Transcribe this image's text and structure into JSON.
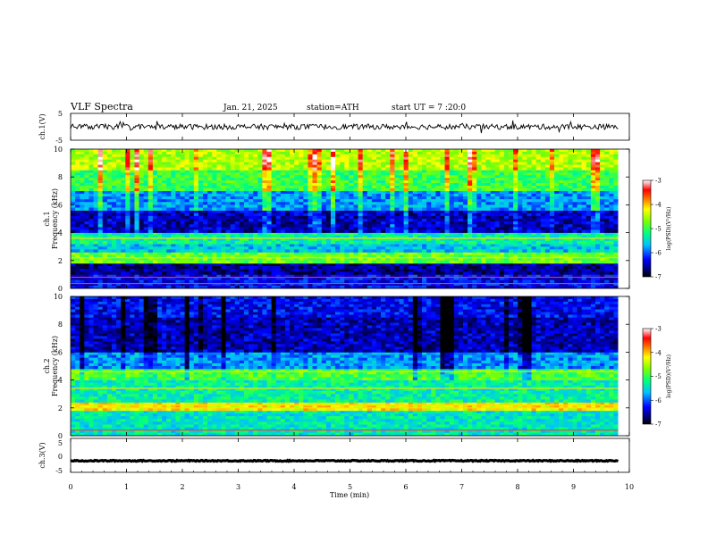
{
  "header": {
    "title": "VLF  Spectra",
    "date": "Jan. 21, 2025",
    "station": "station=ATH",
    "start": "start  UT  =   7  :20:0"
  },
  "chart_data": [
    {
      "type": "line",
      "name": "ch1-waveform",
      "ylabel": "ch.1(V)",
      "ylim": [
        -5,
        5
      ],
      "yticks": [
        "5",
        "-5"
      ],
      "xlim": [
        0,
        9.8
      ],
      "description_values": "noisy signal oscillating around 0 V with amplitude ~1 V",
      "baseline": 0,
      "amplitude": 1.0
    },
    {
      "type": "heatmap",
      "name": "ch1-spectrogram",
      "ylabel": "ch.1\nFrequency  (kHz)",
      "ylim": [
        0,
        10
      ],
      "yticks": [
        "0",
        "2",
        "4",
        "6",
        "8",
        "10"
      ],
      "xlim": [
        0,
        9.8
      ],
      "colorbar": {
        "label": "log(PSD)(V²/Hz)",
        "range": [
          -7,
          -3
        ],
        "ticks": [
          "-3",
          "-4",
          "-5",
          "-6",
          "-7"
        ]
      },
      "bands_khz": [
        {
          "from": 0.0,
          "to": 1.0,
          "level": -6.3
        },
        {
          "from": 1.0,
          "to": 1.8,
          "level": -6.6
        },
        {
          "from": 1.8,
          "to": 2.6,
          "level": -4.8
        },
        {
          "from": 2.6,
          "to": 3.2,
          "level": -5.6
        },
        {
          "from": 3.2,
          "to": 4.0,
          "level": -5.3
        },
        {
          "from": 4.0,
          "to": 5.6,
          "level": -6.5
        },
        {
          "from": 5.6,
          "to": 7.0,
          "level": -5.8
        },
        {
          "from": 7.0,
          "to": 8.5,
          "level": -5.0
        },
        {
          "from": 8.5,
          "to": 10.0,
          "level": -4.5
        }
      ]
    },
    {
      "type": "heatmap",
      "name": "ch2-spectrogram",
      "ylabel": "ch.2\nFrequency  (kHz)",
      "ylim": [
        0,
        10
      ],
      "yticks": [
        "0",
        "2",
        "4",
        "6",
        "8",
        "10"
      ],
      "xlim": [
        0,
        9.8
      ],
      "colorbar": {
        "label": "log(PSD)(V²/Hz)",
        "range": [
          -7,
          -3
        ],
        "ticks": [
          "-3",
          "-4",
          "-5",
          "-6",
          "-7"
        ]
      },
      "bands_khz": [
        {
          "from": 0.0,
          "to": 1.8,
          "level": -5.4
        },
        {
          "from": 1.8,
          "to": 2.4,
          "level": -4.2
        },
        {
          "from": 2.4,
          "to": 4.0,
          "level": -5.3
        },
        {
          "from": 4.0,
          "to": 4.8,
          "level": -4.9
        },
        {
          "from": 4.8,
          "to": 6.0,
          "level": -5.8
        },
        {
          "from": 6.0,
          "to": 8.5,
          "level": -6.5
        },
        {
          "from": 8.5,
          "to": 10.0,
          "level": -6.3
        }
      ]
    },
    {
      "type": "line",
      "name": "ch3-waveform",
      "ylabel": "ch.3(V)",
      "ylim": [
        -5,
        5
      ],
      "yticks": [
        "5",
        "0",
        "-5"
      ],
      "xlim": [
        0,
        9.8
      ],
      "baseline": -1.6,
      "amplitude": 0.15
    }
  ],
  "xaxis": {
    "label": "Time  (min)",
    "ticks": [
      "0",
      "1",
      "2",
      "3",
      "4",
      "5",
      "6",
      "7",
      "8",
      "9",
      "10"
    ],
    "range": [
      0,
      10
    ]
  }
}
